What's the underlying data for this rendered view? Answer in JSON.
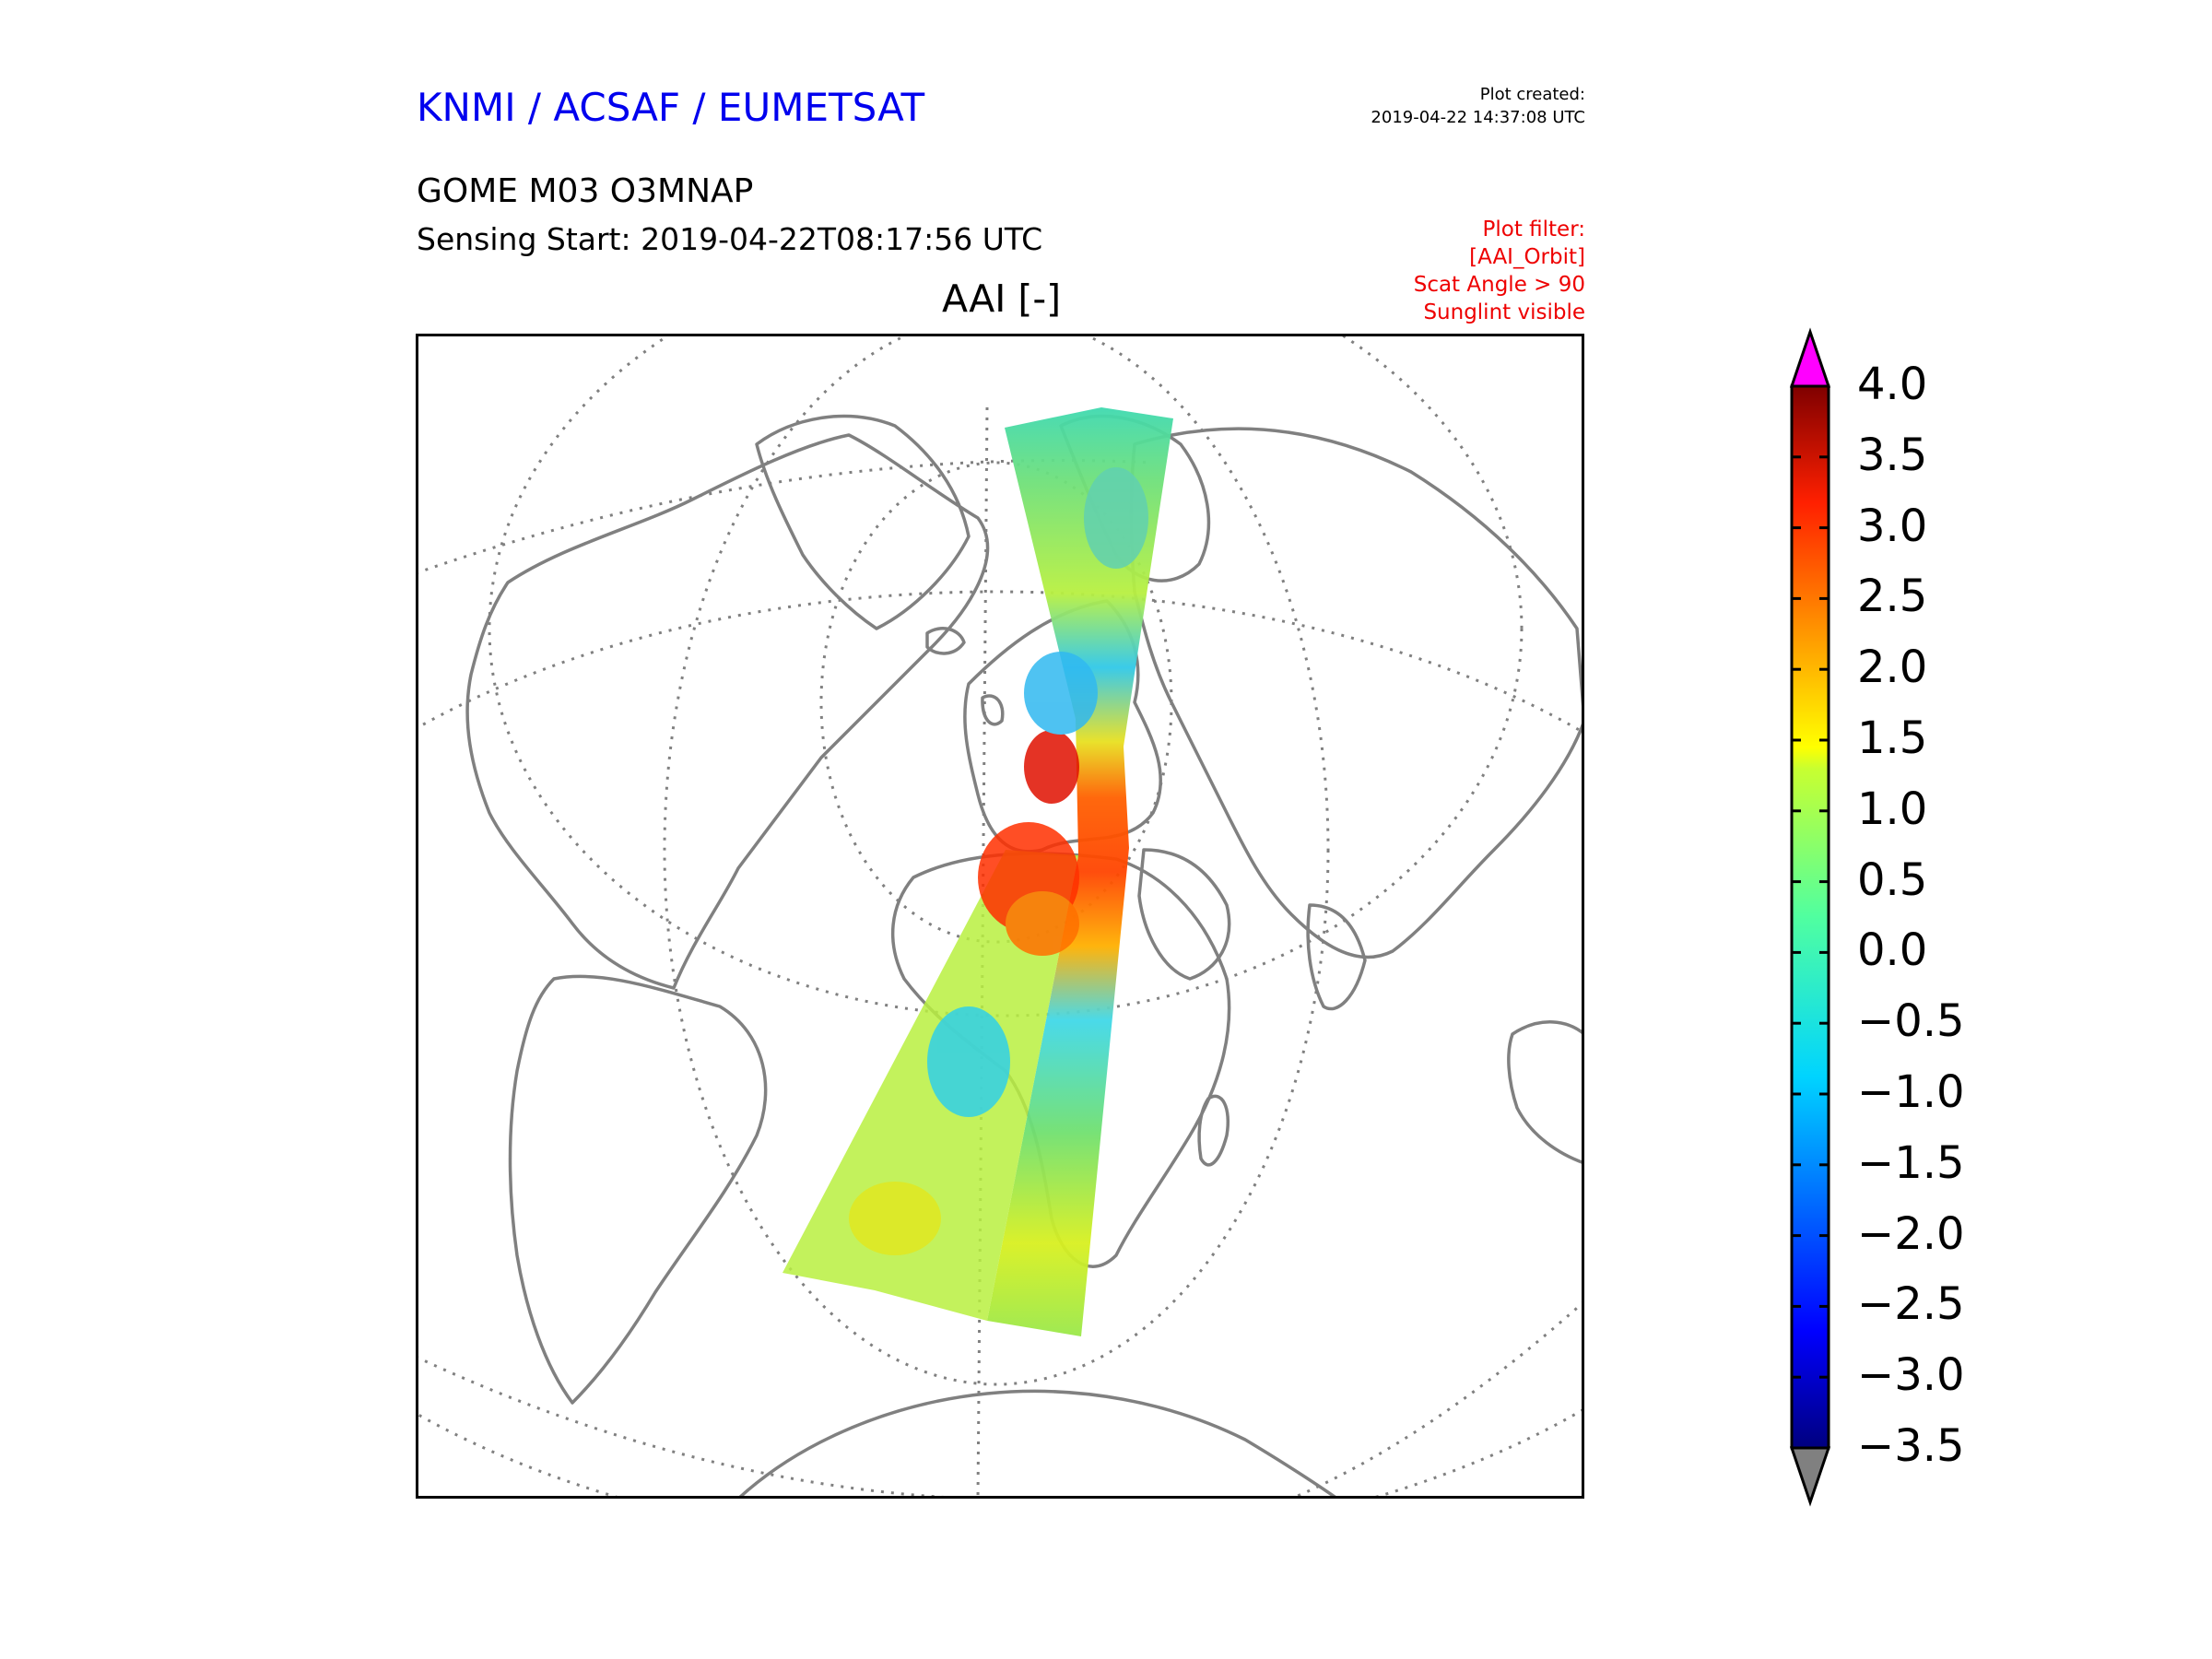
{
  "header": {
    "organisation": "KNMI / ACSAF / EUMETSAT",
    "organisation_color": "#0000ee",
    "plot_created_label": "Plot created:",
    "plot_created_time": "2019-04-22 14:37:08 UTC",
    "product": "GOME M03 O3MNAP",
    "sensing_start": "Sensing Start: 2019-04-22T08:17:56 UTC"
  },
  "filter": {
    "color": "#ee0000",
    "lines": [
      "Plot filter:",
      "[AAI_Orbit]",
      "Scat Angle > 90",
      "Sunglint visible"
    ]
  },
  "map": {
    "title": "AAI [-]",
    "coastline_color": "#808080",
    "graticule_color": "#808080",
    "projection": "orthographic"
  },
  "colorbar": {
    "min": -3.5,
    "max": 4.0,
    "over_color": "#ff00ff",
    "under_color": "#808080",
    "colormap": "jet",
    "ticks": [
      "4.0",
      "3.5",
      "3.0",
      "2.5",
      "2.0",
      "1.5",
      "1.0",
      "0.5",
      "0.0",
      "−0.5",
      "−1.0",
      "−1.5",
      "−2.0",
      "−2.5",
      "−3.0",
      "−3.5"
    ]
  }
}
